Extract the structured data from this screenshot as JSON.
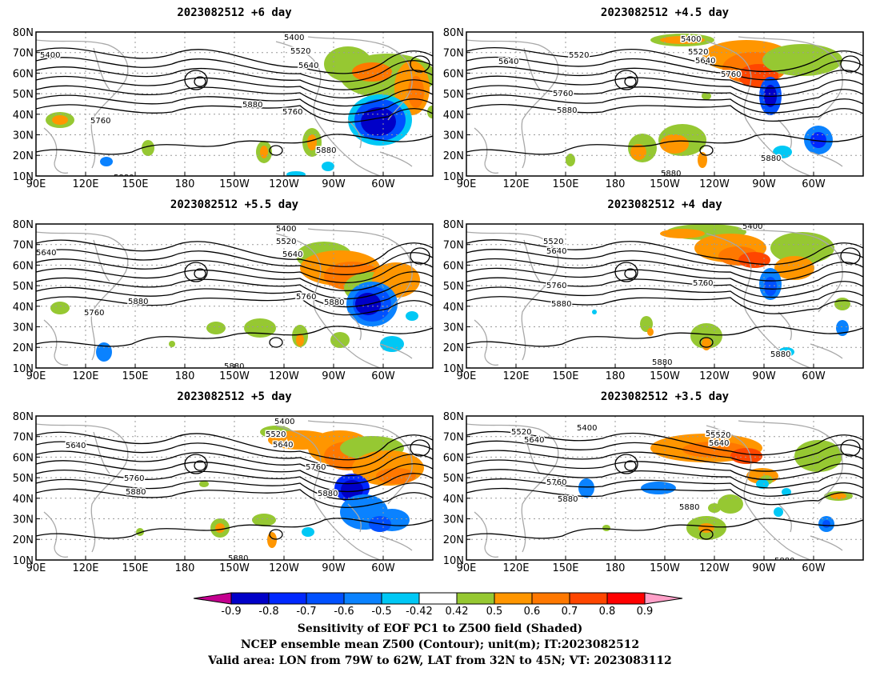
{
  "panels": [
    {
      "title": "2023082512  +6 day"
    },
    {
      "title": "2023082512  +4.5 day"
    },
    {
      "title": "2023082512  +5.5 day"
    },
    {
      "title": "2023082512  +4 day"
    },
    {
      "title": "2023082512  +5 day"
    },
    {
      "title": "2023082512  +3.5 day"
    }
  ],
  "axes": {
    "x_ticks": [
      "90E",
      "120E",
      "150E",
      "180",
      "150W",
      "120W",
      "90W",
      "60W"
    ],
    "y_ticks": [
      "80N",
      "70N",
      "60N",
      "50N",
      "40N",
      "30N",
      "20N",
      "10N"
    ]
  },
  "contour_labels": [
    "5400",
    "5520",
    "5640",
    "5760",
    "5880"
  ],
  "colorbar": {
    "colors": [
      "#c4008f",
      "#0000c8",
      "#0028ff",
      "#0050ff",
      "#0a82ff",
      "#00c8f5",
      "#ffffff",
      "#96c832",
      "#ff9600",
      "#ff7800",
      "#ff4600",
      "#ff0000",
      "#ffa0c8"
    ],
    "labels": [
      "-0.9",
      "-0.8",
      "-0.7",
      "-0.6",
      "-0.5",
      "-0.42",
      "0.42",
      "0.5",
      "0.6",
      "0.7",
      "0.8",
      "0.9"
    ]
  },
  "caption": [
    "Sensitivity of EOF PC1 to Z500 field (Shaded)",
    "NCEP ensemble mean Z500 (Contour); unit(m); IT:2023082512",
    "Valid area: LON from 79W to 62W, LAT from 32N to 45N; VT: 2023083112"
  ]
}
